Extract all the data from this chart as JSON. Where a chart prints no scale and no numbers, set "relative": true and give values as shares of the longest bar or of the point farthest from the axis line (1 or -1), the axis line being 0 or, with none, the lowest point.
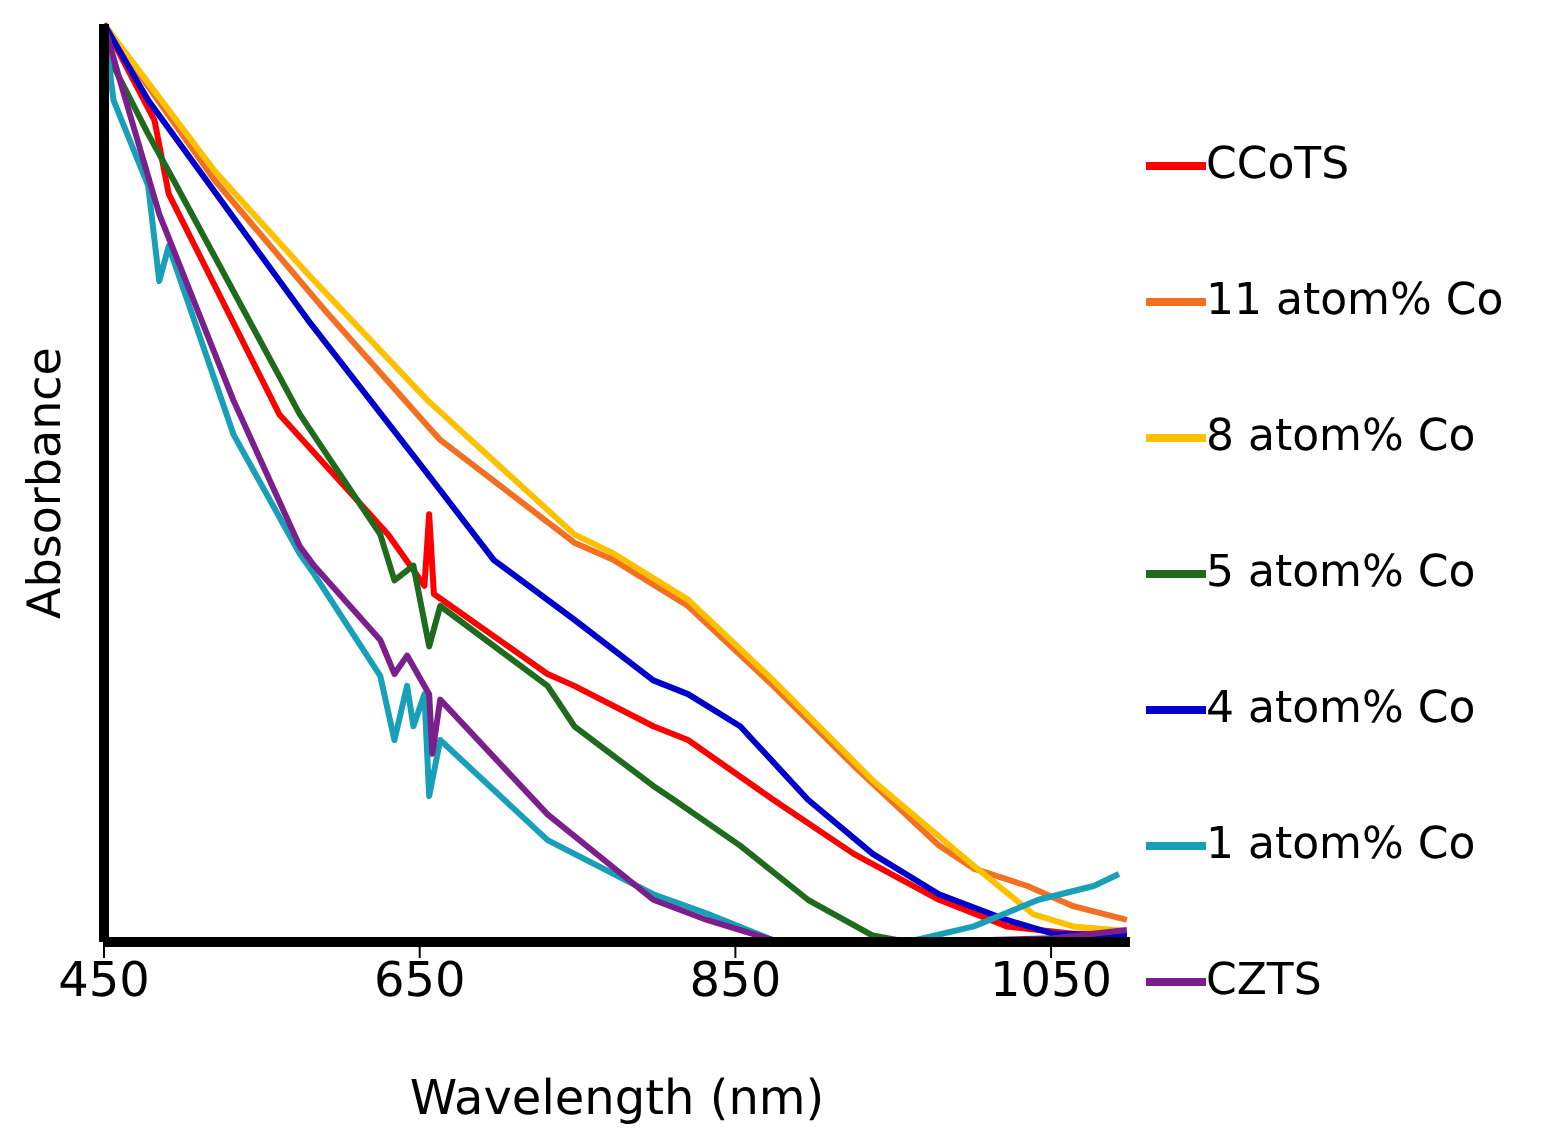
{
  "chart_data": {
    "type": "line",
    "xlabel": "Wavelength (nm)",
    "ylabel": "Absorbance",
    "relative": true,
    "xlim": [
      450,
      1100
    ],
    "xticks": [
      450,
      650,
      850,
      1050
    ],
    "grid": false,
    "legend": "right",
    "marker": "none",
    "line_style": "solid",
    "series": [
      {
        "name": "CCoTS",
        "color": "#ff0000",
        "x": [
          450,
          482,
          491,
          561,
          630,
          653,
          656,
          659,
          731,
          748,
          798,
          820,
          874,
          925,
          979,
          1022,
          1064,
          1098
        ],
        "values": [
          1,
          0.895,
          0.815,
          0.575,
          0.444,
          0.388,
          0.466,
          0.379,
          0.292,
          0.279,
          0.235,
          0.22,
          0.155,
          0.096,
          0.046,
          0.017,
          0.009,
          0.009
        ]
      },
      {
        "name": "11 atom% Co",
        "color": "#f36f21",
        "x": [
          450,
          520,
          592,
          655,
          663,
          748,
          773,
          820,
          874,
          925,
          979,
          1001,
          1035,
          1064,
          1098
        ],
        "values": [
          1,
          0.83,
          0.684,
          0.562,
          0.547,
          0.435,
          0.416,
          0.366,
          0.279,
          0.192,
          0.105,
          0.08,
          0.061,
          0.039,
          0.024
        ]
      },
      {
        "name": "8 atom% Co",
        "color": "#ffc000",
        "x": [
          450,
          520,
          579,
          655,
          748,
          773,
          820,
          874,
          937,
          1001,
          1039,
          1064,
          1098
        ],
        "values": [
          1,
          0.84,
          0.728,
          0.59,
          0.444,
          0.423,
          0.373,
          0.285,
          0.176,
          0.083,
          0.03,
          0.017,
          0.012
        ]
      },
      {
        "name": "5 atom% Co",
        "color": "#1e6b1e",
        "x": [
          450,
          456,
          478,
          494,
          574,
          625,
          634,
          646,
          656,
          663,
          731,
          748,
          798,
          811,
          853,
          896,
          937,
          959,
          1026,
          1098
        ],
        "values": [
          1,
          0.954,
          0.88,
          0.83,
          0.575,
          0.444,
          0.394,
          0.41,
          0.322,
          0.366,
          0.279,
          0.235,
          0.17,
          0.155,
          0.105,
          0.046,
          0.007,
          0,
          0.002,
          0.004
        ]
      },
      {
        "name": "4 atom% Co",
        "color": "#0000cc",
        "x": [
          450,
          478,
          579,
          655,
          697,
          748,
          798,
          820,
          853,
          896,
          937,
          979,
          1022,
          1051,
          1098
        ],
        "values": [
          1,
          0.917,
          0.678,
          0.51,
          0.416,
          0.351,
          0.285,
          0.27,
          0.235,
          0.155,
          0.096,
          0.052,
          0.024,
          0.009,
          0.007
        ]
      },
      {
        "name": "1 atom% Co",
        "color": "#17a0b8",
        "x": [
          450,
          456,
          478,
          485,
          491,
          532,
          574,
          583,
          625,
          634,
          642,
          646,
          653,
          656,
          663,
          731,
          798,
          832,
          874,
          959,
          1001,
          1042,
          1077,
          1093
        ],
        "values": [
          1,
          0.917,
          0.824,
          0.72,
          0.758,
          0.553,
          0.423,
          0.401,
          0.29,
          0.22,
          0.279,
          0.235,
          0.27,
          0.159,
          0.22,
          0.111,
          0.052,
          0.031,
          0.002,
          0,
          0.017,
          0.046,
          0.061,
          0.074
        ]
      },
      {
        "name": "CZTS",
        "color": "#7b1f8c",
        "x": [
          450,
          460,
          485,
          532,
          574,
          583,
          625,
          634,
          642,
          656,
          658,
          663,
          731,
          798,
          832,
          874,
          963,
          1051,
          1098
        ],
        "values": [
          1,
          0.939,
          0.793,
          0.59,
          0.431,
          0.41,
          0.329,
          0.292,
          0.312,
          0.27,
          0.205,
          0.264,
          0.139,
          0.046,
          0.024,
          0.002,
          0,
          0.004,
          0.013
        ]
      }
    ]
  }
}
